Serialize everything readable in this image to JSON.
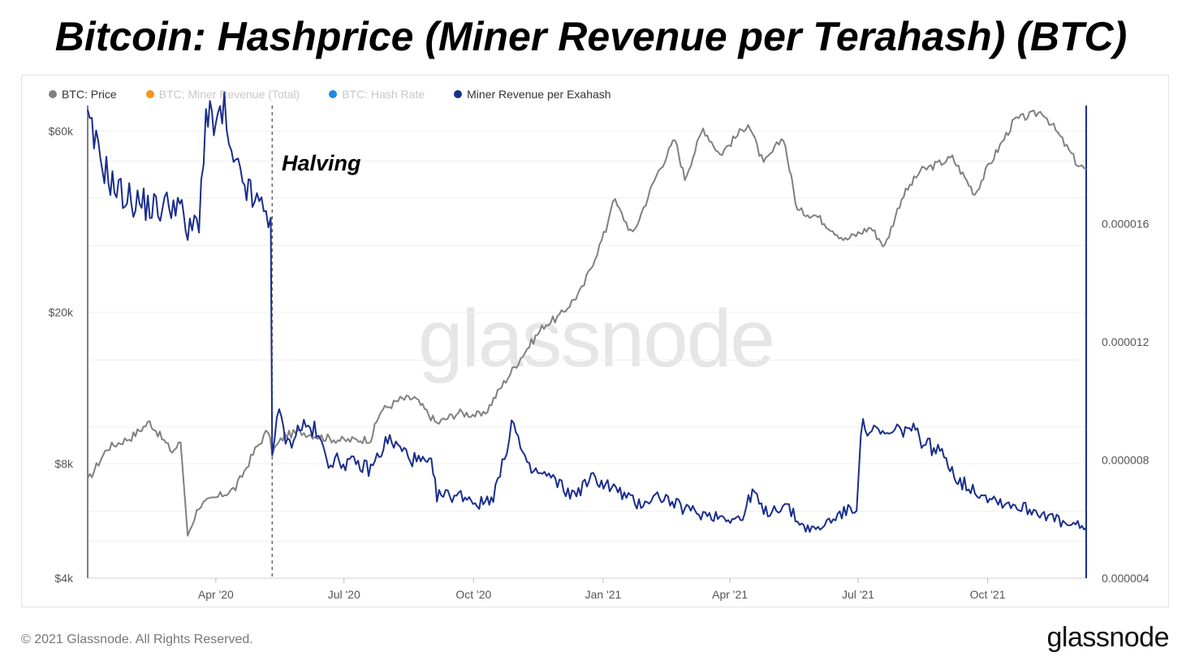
{
  "title": "Bitcoin: Hashprice (Miner Revenue per Terahash) (BTC)",
  "legend": [
    {
      "label": "BTC: Price",
      "color": "#808080",
      "active": true
    },
    {
      "label": "BTC: Miner Revenue (Total)",
      "color": "#f7931a",
      "active": false
    },
    {
      "label": "BTC: Hash Rate",
      "color": "#1e88e5",
      "active": false
    },
    {
      "label": "Miner Revenue per Exahash",
      "color": "#1a2e8c",
      "active": true
    }
  ],
  "annotation": "Halving",
  "watermark": "glassnode",
  "footer": {
    "copyright": "© 2021 Glassnode. All Rights Reserved.",
    "brand": "glassnode"
  },
  "chart_data": {
    "type": "line",
    "x_range": [
      "2020-01-01",
      "2021-12-10"
    ],
    "x_ticks": [
      "Apr '20",
      "Jul '20",
      "Oct '20",
      "Jan '21",
      "Apr '21",
      "Jul '21",
      "Oct '21"
    ],
    "y_left": {
      "scale": "log",
      "range": [
        4000,
        70000
      ],
      "ticks": [
        "$60k",
        "$20k",
        "$8k",
        "$4k"
      ],
      "tick_values": [
        60000,
        20000,
        8000,
        4000
      ]
    },
    "y_right": {
      "scale": "linear",
      "range": [
        4e-06,
        2e-05
      ],
      "ticks": [
        "0.000016",
        "0.000012",
        "0.000008",
        "0.000004"
      ],
      "tick_values": [
        1.6e-05,
        1.2e-05,
        8e-06,
        4e-06
      ]
    },
    "halving_date": "2020-05-11",
    "series": [
      {
        "name": "BTC: Price",
        "color": "#808080",
        "axis": "left",
        "points": [
          [
            "2020-01-01",
            7200
          ],
          [
            "2020-01-15",
            8800
          ],
          [
            "2020-02-01",
            9400
          ],
          [
            "2020-02-14",
            10300
          ],
          [
            "2020-03-01",
            8600
          ],
          [
            "2020-03-07",
            9100
          ],
          [
            "2020-03-12",
            5200
          ],
          [
            "2020-03-20",
            6200
          ],
          [
            "2020-04-01",
            6500
          ],
          [
            "2020-04-15",
            6900
          ],
          [
            "2020-04-29",
            8700
          ],
          [
            "2020-05-08",
            9800
          ],
          [
            "2020-05-11",
            8600
          ],
          [
            "2020-05-20",
            9500
          ],
          [
            "2020-06-01",
            9700
          ],
          [
            "2020-06-15",
            9400
          ],
          [
            "2020-07-01",
            9200
          ],
          [
            "2020-07-20",
            9300
          ],
          [
            "2020-07-27",
            11000
          ],
          [
            "2020-08-10",
            11800
          ],
          [
            "2020-08-20",
            11900
          ],
          [
            "2020-09-05",
            10200
          ],
          [
            "2020-09-20",
            10900
          ],
          [
            "2020-10-08",
            10700
          ],
          [
            "2020-10-21",
            12800
          ],
          [
            "2020-11-05",
            15500
          ],
          [
            "2020-11-20",
            18500
          ],
          [
            "2020-12-01",
            19500
          ],
          [
            "2020-12-17",
            23000
          ],
          [
            "2021-01-03",
            33000
          ],
          [
            "2021-01-08",
            40000
          ],
          [
            "2021-01-22",
            32000
          ],
          [
            "2021-02-08",
            46000
          ],
          [
            "2021-02-21",
            57000
          ],
          [
            "2021-02-28",
            45000
          ],
          [
            "2021-03-13",
            61000
          ],
          [
            "2021-03-25",
            52000
          ],
          [
            "2021-04-14",
            63000
          ],
          [
            "2021-04-25",
            49000
          ],
          [
            "2021-05-09",
            58000
          ],
          [
            "2021-05-19",
            37000
          ],
          [
            "2021-06-01",
            36000
          ],
          [
            "2021-06-22",
            31000
          ],
          [
            "2021-07-10",
            33500
          ],
          [
            "2021-07-20",
            29800
          ],
          [
            "2021-08-01",
            40000
          ],
          [
            "2021-08-14",
            47000
          ],
          [
            "2021-09-06",
            51000
          ],
          [
            "2021-09-22",
            41000
          ],
          [
            "2021-10-01",
            48000
          ],
          [
            "2021-10-20",
            64000
          ],
          [
            "2021-11-09",
            67500
          ],
          [
            "2021-11-20",
            59000
          ],
          [
            "2021-12-04",
            49000
          ],
          [
            "2021-12-10",
            47500
          ]
        ]
      },
      {
        "name": "Miner Revenue per Exahash",
        "color": "#1a2e8c",
        "axis": "right",
        "points": [
          [
            "2020-01-01",
            1.94e-05
          ],
          [
            "2020-01-10",
            1.82e-05
          ],
          [
            "2020-01-20",
            1.72e-05
          ],
          [
            "2020-02-01",
            1.68e-05
          ],
          [
            "2020-02-20",
            1.65e-05
          ],
          [
            "2020-03-05",
            1.68e-05
          ],
          [
            "2020-03-12",
            1.56e-05
          ],
          [
            "2020-03-20",
            1.62e-05
          ],
          [
            "2020-03-25",
            1.96e-05
          ],
          [
            "2020-04-01",
            1.93e-05
          ],
          [
            "2020-04-07",
            1.98e-05
          ],
          [
            "2020-04-12",
            1.8e-05
          ],
          [
            "2020-04-20",
            1.75e-05
          ],
          [
            "2020-04-27",
            1.68e-05
          ],
          [
            "2020-05-05",
            1.65e-05
          ],
          [
            "2020-05-10",
            1.62e-05
          ],
          [
            "2020-05-11",
            8.3e-06
          ],
          [
            "2020-05-16",
            9.6e-06
          ],
          [
            "2020-05-22",
            8.5e-06
          ],
          [
            "2020-06-01",
            9.2e-06
          ],
          [
            "2020-06-10",
            9e-06
          ],
          [
            "2020-06-20",
            8e-06
          ],
          [
            "2020-07-05",
            7.9e-06
          ],
          [
            "2020-07-20",
            7.7e-06
          ],
          [
            "2020-08-01",
            8.7e-06
          ],
          [
            "2020-08-20",
            8e-06
          ],
          [
            "2020-09-01",
            7.8e-06
          ],
          [
            "2020-09-05",
            6.8e-06
          ],
          [
            "2020-09-25",
            6.8e-06
          ],
          [
            "2020-10-05",
            6.5e-06
          ],
          [
            "2020-10-15",
            6.8e-06
          ],
          [
            "2020-10-23",
            8e-06
          ],
          [
            "2020-10-28",
            9.4e-06
          ],
          [
            "2020-11-08",
            7.7e-06
          ],
          [
            "2020-11-25",
            7.4e-06
          ],
          [
            "2020-12-10",
            6.8e-06
          ],
          [
            "2020-12-25",
            7.4e-06
          ],
          [
            "2021-01-10",
            7e-06
          ],
          [
            "2021-01-25",
            6.5e-06
          ],
          [
            "2021-02-10",
            6.8e-06
          ],
          [
            "2021-02-25",
            6.4e-06
          ],
          [
            "2021-03-10",
            6.2e-06
          ],
          [
            "2021-03-25",
            6.1e-06
          ],
          [
            "2021-04-10",
            6e-06
          ],
          [
            "2021-04-17",
            7e-06
          ],
          [
            "2021-04-25",
            6.2e-06
          ],
          [
            "2021-05-10",
            6.5e-06
          ],
          [
            "2021-05-22",
            5.8e-06
          ],
          [
            "2021-06-01",
            5.6e-06
          ],
          [
            "2021-06-15",
            6.1e-06
          ],
          [
            "2021-06-30",
            6.4e-06
          ],
          [
            "2021-07-03",
            9.1e-06
          ],
          [
            "2021-07-20",
            8.8e-06
          ],
          [
            "2021-08-05",
            9.1e-06
          ],
          [
            "2021-08-18",
            8.6e-06
          ],
          [
            "2021-09-03",
            8e-06
          ],
          [
            "2021-09-10",
            7.3e-06
          ],
          [
            "2021-09-25",
            6.9e-06
          ],
          [
            "2021-10-10",
            6.6e-06
          ],
          [
            "2021-10-25",
            6.4e-06
          ],
          [
            "2021-11-10",
            6.2e-06
          ],
          [
            "2021-11-25",
            5.8e-06
          ],
          [
            "2021-12-10",
            5.7e-06
          ]
        ]
      }
    ]
  }
}
